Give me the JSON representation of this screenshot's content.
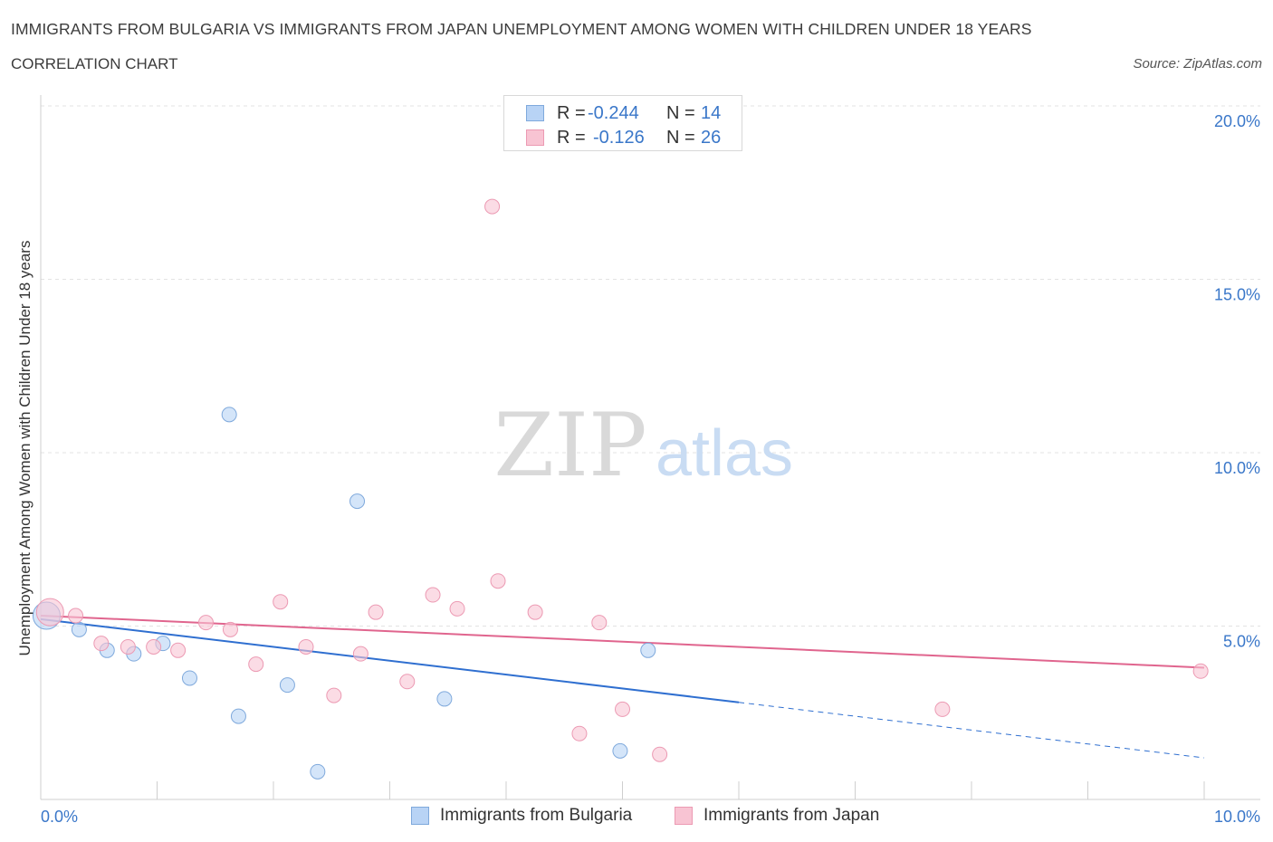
{
  "header": {
    "title": "IMMIGRANTS FROM BULGARIA VS IMMIGRANTS FROM JAPAN UNEMPLOYMENT AMONG WOMEN WITH CHILDREN UNDER 18 YEARS",
    "subtitle": "CORRELATION CHART",
    "source": "Source: ZipAtlas.com"
  },
  "legend": {
    "rows": [
      {
        "r_label": "R =",
        "r_value": "-0.244",
        "n_label": "N =",
        "n_value": "14"
      },
      {
        "r_label": "R =",
        "r_value": "-0.126",
        "n_label": "N =",
        "n_value": "26"
      }
    ]
  },
  "watermark": {
    "zip": "ZIP",
    "atlas": "atlas"
  },
  "chart_data": {
    "type": "scatter",
    "title": "IMMIGRANTS FROM BULGARIA VS IMMIGRANTS FROM JAPAN UNEMPLOYMENT AMONG WOMEN WITH CHILDREN UNDER 18 YEARS",
    "xlabel": "",
    "ylabel": "Unemployment Among Women with Children Under 18 years",
    "xlim": [
      0,
      10
    ],
    "ylim": [
      0,
      20
    ],
    "x_tick_labels": [
      "0.0%",
      "10.0%"
    ],
    "y_tick_values": [
      5,
      10,
      15,
      20
    ],
    "y_tick_labels": [
      "5.0%",
      "10.0%",
      "15.0%",
      "20.0%"
    ],
    "grid": true,
    "legend_position": "bottom-center",
    "colors": {
      "bulgaria_fill": "#b8d3f5",
      "bulgaria_stroke": "#7fa9dc",
      "bulgaria_line": "#2f6fd0",
      "japan_fill": "#f8c4d3",
      "japan_stroke": "#ec9ab3",
      "japan_line": "#e0658e",
      "tick_label": "#3a77c9"
    },
    "series": [
      {
        "name": "Immigrants from Bulgaria",
        "r": -0.244,
        "n": 14,
        "points": [
          {
            "x": 0.05,
            "y": 5.3,
            "size": "large"
          },
          {
            "x": 0.33,
            "y": 4.9
          },
          {
            "x": 0.57,
            "y": 4.3
          },
          {
            "x": 0.8,
            "y": 4.2
          },
          {
            "x": 1.05,
            "y": 4.5
          },
          {
            "x": 1.28,
            "y": 3.5
          },
          {
            "x": 1.62,
            "y": 11.1
          },
          {
            "x": 1.7,
            "y": 2.4
          },
          {
            "x": 2.12,
            "y": 3.3
          },
          {
            "x": 2.38,
            "y": 0.8
          },
          {
            "x": 2.72,
            "y": 8.6
          },
          {
            "x": 3.47,
            "y": 2.9
          },
          {
            "x": 4.98,
            "y": 1.4
          },
          {
            "x": 5.22,
            "y": 4.3
          }
        ],
        "trend": {
          "x0": 0.0,
          "y0": 5.2,
          "x1": 6.0,
          "y1": 2.8,
          "dashed_to_x": 10.0,
          "dashed_to_y": 1.2
        }
      },
      {
        "name": "Immigrants from Japan",
        "r": -0.126,
        "n": 26,
        "points": [
          {
            "x": 0.08,
            "y": 5.4,
            "size": "large"
          },
          {
            "x": 0.3,
            "y": 5.3
          },
          {
            "x": 0.52,
            "y": 4.5
          },
          {
            "x": 0.75,
            "y": 4.4
          },
          {
            "x": 0.97,
            "y": 4.4
          },
          {
            "x": 1.18,
            "y": 4.3
          },
          {
            "x": 1.42,
            "y": 5.1
          },
          {
            "x": 1.63,
            "y": 4.9
          },
          {
            "x": 1.85,
            "y": 3.9
          },
          {
            "x": 2.06,
            "y": 5.7
          },
          {
            "x": 2.28,
            "y": 4.4
          },
          {
            "x": 2.52,
            "y": 3.0
          },
          {
            "x": 2.75,
            "y": 4.2
          },
          {
            "x": 2.88,
            "y": 5.4
          },
          {
            "x": 3.15,
            "y": 3.4
          },
          {
            "x": 3.37,
            "y": 5.9
          },
          {
            "x": 3.58,
            "y": 5.5
          },
          {
            "x": 3.88,
            "y": 17.1
          },
          {
            "x": 3.93,
            "y": 6.3
          },
          {
            "x": 4.25,
            "y": 5.4
          },
          {
            "x": 4.63,
            "y": 1.9
          },
          {
            "x": 4.8,
            "y": 5.1
          },
          {
            "x": 5.0,
            "y": 2.6
          },
          {
            "x": 5.32,
            "y": 1.3
          },
          {
            "x": 7.75,
            "y": 2.6
          },
          {
            "x": 9.97,
            "y": 3.7
          }
        ],
        "trend": {
          "x0": 0.0,
          "y0": 5.3,
          "x1": 10.0,
          "y1": 3.8
        }
      }
    ]
  }
}
